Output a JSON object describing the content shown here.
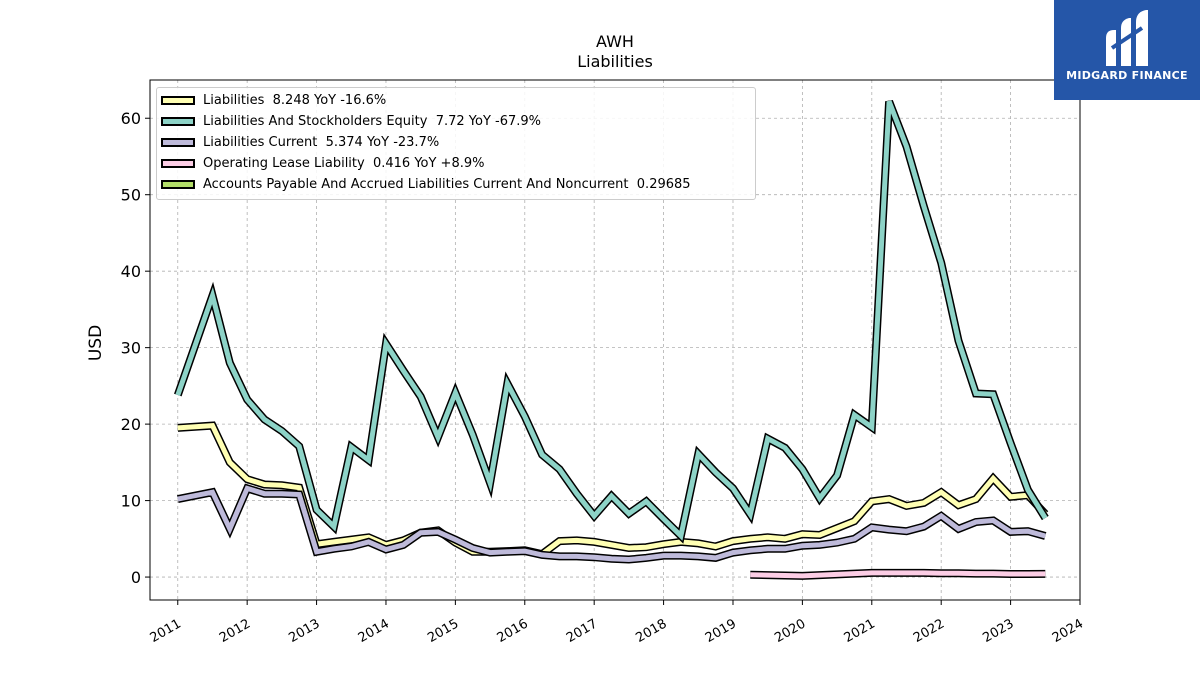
{
  "header": {
    "title": "AWH",
    "subtitle": "Liabilities"
  },
  "logo": {
    "text": "MIDGARD FINANCE",
    "color": "#2556a8"
  },
  "chart_data": {
    "type": "line",
    "title": "AWH",
    "subtitle": "Liabilities",
    "ylabel": "USD",
    "xlabel": "",
    "xlim": [
      2010.6,
      2024.0
    ],
    "ylim": [
      -3,
      65
    ],
    "yticks": [
      0,
      10,
      20,
      30,
      40,
      50,
      60
    ],
    "xticks": [
      2011,
      2012,
      2013,
      2014,
      2015,
      2016,
      2017,
      2018,
      2019,
      2020,
      2021,
      2022,
      2023,
      2024
    ],
    "xtick_labels": [
      "2011",
      "2012",
      "2013",
      "2014",
      "2015",
      "2016",
      "2017",
      "2018",
      "2019",
      "2020",
      "2021",
      "2022",
      "2023",
      "2024"
    ],
    "grid": true,
    "legend_position": "top-left",
    "series": [
      {
        "name": "Liabilities",
        "legend_text": "Liabilities  8.248 YoY -16.6%",
        "color": "#ffffb3",
        "x": [
          2011.0,
          2011.5,
          2011.75,
          2012.0,
          2012.25,
          2012.5,
          2012.75,
          2013.0,
          2013.25,
          2013.5,
          2013.75,
          2014.0,
          2014.25,
          2014.5,
          2014.75,
          2015.0,
          2015.25,
          2015.5,
          2015.75,
          2016.0,
          2016.25,
          2016.5,
          2016.75,
          2017.0,
          2017.25,
          2017.5,
          2017.75,
          2018.0,
          2018.25,
          2018.5,
          2018.75,
          2019.0,
          2019.25,
          2019.5,
          2019.75,
          2020.0,
          2020.25,
          2020.5,
          2020.75,
          2021.0,
          2021.25,
          2021.5,
          2021.75,
          2022.0,
          2022.25,
          2022.5,
          2022.75,
          2023.0,
          2023.25,
          2023.5
        ],
        "y": [
          19.5,
          19.8,
          15.0,
          12.8,
          12.1,
          12.0,
          11.7,
          4.3,
          4.6,
          4.9,
          5.2,
          4.2,
          4.8,
          5.8,
          6.1,
          4.5,
          3.3,
          3.3,
          3.4,
          3.5,
          3.0,
          4.7,
          4.8,
          4.6,
          4.2,
          3.8,
          3.9,
          4.3,
          4.6,
          4.4,
          4.0,
          4.7,
          5.0,
          5.2,
          5.0,
          5.6,
          5.5,
          6.4,
          7.3,
          9.9,
          10.2,
          9.3,
          9.7,
          11.1,
          9.4,
          10.2,
          12.9,
          10.5,
          10.7,
          8.248
        ]
      },
      {
        "name": "Liabilities And Stockholders Equity",
        "legend_text": "Liabilities And Stockholders Equity  7.72 YoY -67.9%",
        "color": "#8dd3c7",
        "x": [
          2011.0,
          2011.5,
          2011.75,
          2012.0,
          2012.25,
          2012.5,
          2012.75,
          2013.0,
          2013.25,
          2013.5,
          2013.75,
          2014.0,
          2014.25,
          2014.5,
          2014.75,
          2015.0,
          2015.25,
          2015.5,
          2015.75,
          2016.0,
          2016.25,
          2016.5,
          2016.75,
          2017.0,
          2017.25,
          2017.5,
          2017.75,
          2018.0,
          2018.25,
          2018.5,
          2018.75,
          2019.0,
          2019.25,
          2019.5,
          2019.75,
          2020.0,
          2020.25,
          2020.5,
          2020.75,
          2021.0,
          2021.25,
          2021.5,
          2021.75,
          2022.0,
          2022.25,
          2022.5,
          2022.75,
          2023.0,
          2023.25,
          2023.5
        ],
        "y": [
          23.8,
          36.8,
          28.0,
          23.2,
          20.6,
          19.1,
          17.1,
          8.8,
          6.6,
          17.0,
          15.3,
          30.5,
          27.0,
          23.6,
          18.3,
          24.1,
          18.6,
          12.3,
          25.3,
          21.0,
          16.0,
          14.1,
          10.9,
          8.0,
          10.6,
          8.3,
          9.9,
          7.6,
          5.4,
          16.1,
          13.7,
          11.6,
          8.2,
          18.1,
          16.9,
          14.1,
          10.3,
          13.3,
          21.2,
          19.6,
          62.2,
          56.3,
          48.5,
          41.1,
          30.9,
          24.0,
          23.9,
          17.5,
          11.4,
          7.72
        ]
      },
      {
        "name": "Liabilities Current",
        "legend_text": "Liabilities Current  5.374 YoY -23.7%",
        "color": "#bebada",
        "x": [
          2011.0,
          2011.5,
          2011.75,
          2012.0,
          2012.25,
          2012.5,
          2012.75,
          2013.0,
          2013.25,
          2013.5,
          2013.75,
          2014.0,
          2014.25,
          2014.5,
          2014.75,
          2015.0,
          2015.25,
          2015.5,
          2015.75,
          2016.0,
          2016.25,
          2016.5,
          2016.75,
          2017.0,
          2017.25,
          2017.5,
          2017.75,
          2018.0,
          2018.25,
          2018.5,
          2018.75,
          2019.0,
          2019.25,
          2019.5,
          2019.75,
          2020.0,
          2020.25,
          2020.5,
          2020.75,
          2021.0,
          2021.25,
          2021.5,
          2021.75,
          2022.0,
          2022.25,
          2022.5,
          2022.75,
          2023.0,
          2023.25,
          2023.5
        ],
        "y": [
          10.2,
          11.1,
          6.3,
          11.6,
          10.9,
          10.9,
          10.8,
          3.3,
          3.7,
          4.0,
          4.6,
          3.6,
          4.2,
          5.8,
          5.9,
          4.9,
          3.8,
          3.2,
          3.3,
          3.4,
          2.9,
          2.7,
          2.7,
          2.6,
          2.4,
          2.3,
          2.5,
          2.8,
          2.8,
          2.7,
          2.5,
          3.2,
          3.5,
          3.7,
          3.7,
          4.1,
          4.2,
          4.5,
          5.0,
          6.5,
          6.2,
          6.0,
          6.6,
          8.0,
          6.3,
          7.2,
          7.4,
          5.9,
          6.0,
          5.374
        ]
      },
      {
        "name": "Operating Lease Liability",
        "legend_text": "Operating Lease Liability  0.416 YoY +8.9%",
        "color": "#fccde5",
        "x": [
          2019.25,
          2019.5,
          2019.75,
          2020.0,
          2020.25,
          2020.5,
          2020.75,
          2021.0,
          2021.25,
          2021.5,
          2021.75,
          2022.0,
          2022.25,
          2022.5,
          2022.75,
          2023.0,
          2023.25,
          2023.5
        ],
        "y": [
          0.3,
          0.25,
          0.2,
          0.15,
          0.25,
          0.35,
          0.45,
          0.55,
          0.55,
          0.55,
          0.55,
          0.5,
          0.5,
          0.45,
          0.45,
          0.4,
          0.4,
          0.416
        ]
      },
      {
        "name": "Accounts Payable And Accrued Liabilities Current And Noncurrent",
        "legend_text": "Accounts Payable And Accrued Liabilities Current And Noncurrent  0.29685",
        "color": "#b3de69",
        "x": [],
        "y": []
      }
    ]
  }
}
